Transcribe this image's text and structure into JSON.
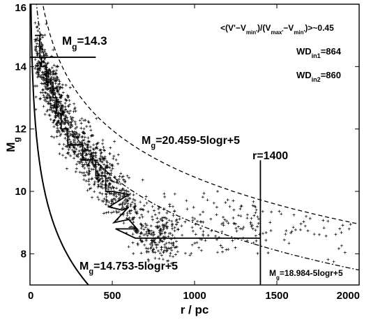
{
  "chart_data": {
    "type": "scatter",
    "xlabel": "r / pc",
    "ylabel": "M_g",
    "xlim": [
      0,
      2000
    ],
    "ylim": [
      7,
      16
    ],
    "y_inverted": true,
    "x_ticks": [
      0,
      500,
      1000,
      1500,
      2000
    ],
    "x_tick_labels": [
      "0",
      "500",
      "1000",
      "1500",
      "2000"
    ],
    "y_ticks": [
      8,
      10,
      12,
      14,
      16
    ],
    "y_tick_labels": [
      "8",
      "10",
      "12",
      "14",
      "16"
    ],
    "grid": false,
    "marker": "+",
    "point_color": "#000000",
    "ridge": [
      [
        60,
        14.3
      ],
      [
        100,
        13.6
      ],
      [
        150,
        13.0
      ],
      [
        200,
        12.4
      ],
      [
        260,
        11.8
      ],
      [
        330,
        11.3
      ],
      [
        400,
        10.8
      ],
      [
        470,
        10.4
      ],
      [
        540,
        10.0
      ],
      [
        590,
        9.6
      ],
      [
        620,
        9.3
      ],
      [
        640,
        9.0
      ],
      [
        680,
        8.7
      ],
      [
        720,
        8.5
      ],
      [
        800,
        8.55
      ],
      [
        900,
        8.6
      ],
      [
        1000,
        8.7
      ],
      [
        1100,
        8.8
      ],
      [
        1250,
        8.9
      ],
      [
        1400,
        9.0
      ],
      [
        1600,
        8.8
      ],
      [
        1800,
        8.6
      ],
      [
        1950,
        8.5
      ]
    ],
    "scatter_seed": 20459,
    "scatter_count": 1450,
    "curves": [
      {
        "label": "M_g=14.753-5logr+5",
        "a": 14.753,
        "style": "solid",
        "xmax": 400
      },
      {
        "label": "M_g=20.459-5logr+5",
        "a": 20.459,
        "style": "dashed",
        "xmax": 2000
      },
      {
        "label": "M_g=18.984-5logr+5",
        "a": 18.984,
        "style": "dashdot",
        "xmax": 2000
      }
    ],
    "limit_line": {
      "label": "M_g=14.3",
      "y": 14.3,
      "x_from": 0,
      "x_to": 400
    },
    "distance_limit": {
      "label": "r=1400",
      "x": 1400,
      "y_bottom": 7,
      "y_top": 11
    },
    "envelope": [
      [
        30,
        15.0
      ],
      [
        60,
        15.0
      ],
      [
        60,
        14.3
      ],
      [
        70,
        14.3
      ],
      [
        70,
        14.0
      ],
      [
        100,
        14.0
      ],
      [
        100,
        13.5
      ],
      [
        140,
        13.5
      ],
      [
        140,
        13.0
      ],
      [
        160,
        13.0
      ],
      [
        160,
        12.5
      ],
      [
        190,
        12.5
      ],
      [
        190,
        12.0
      ],
      [
        230,
        12.0
      ],
      [
        230,
        11.5
      ],
      [
        320,
        11.5
      ],
      [
        320,
        11.0
      ],
      [
        400,
        11.0
      ],
      [
        400,
        10.5
      ],
      [
        460,
        10.5
      ],
      [
        460,
        10.0
      ],
      [
        500,
        10.0
      ],
      [
        600,
        9.9
      ],
      [
        480,
        9.5
      ],
      [
        560,
        9.4
      ],
      [
        600,
        9.5
      ],
      [
        510,
        9.0
      ],
      [
        600,
        9.1
      ],
      [
        650,
        8.8
      ],
      [
        520,
        8.8
      ],
      [
        640,
        8.5
      ],
      [
        1400,
        8.5
      ]
    ],
    "annotations": [
      {
        "text": "<(V'−V_min')/(V_max'−V_min')>~0.45"
      },
      {
        "text": "WD_in1=864"
      },
      {
        "text": "WD_in2=860"
      }
    ]
  }
}
